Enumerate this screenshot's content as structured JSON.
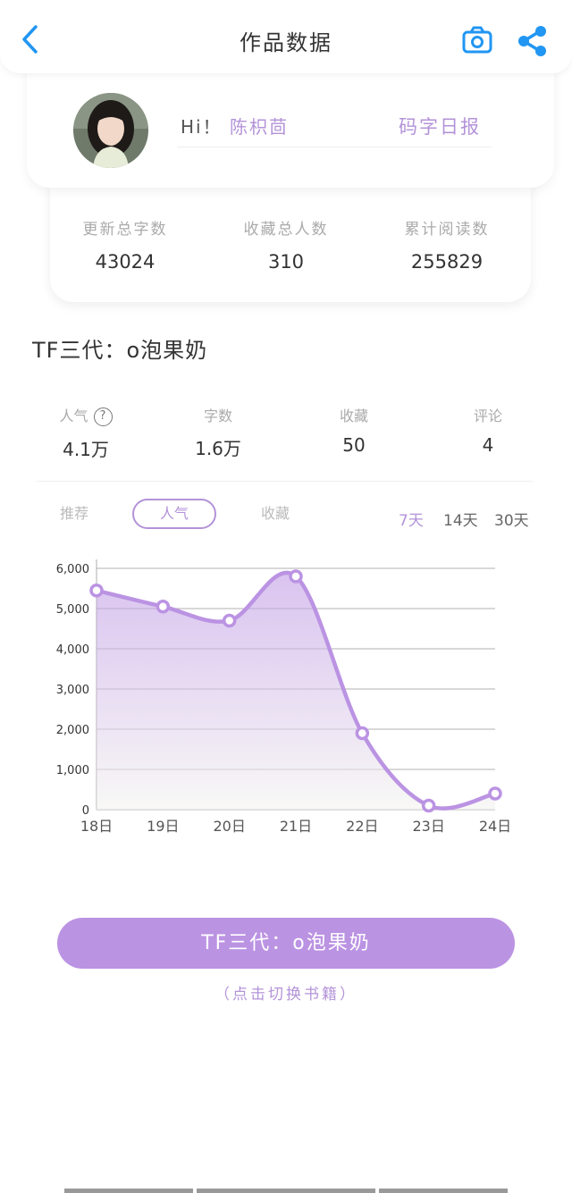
{
  "header": {
    "title": "作品数据"
  },
  "user": {
    "greeting": "Hi！",
    "name": "陈枳茴",
    "daily_link": "码字日报"
  },
  "stats": [
    {
      "label": "更新总字数",
      "value": "43024"
    },
    {
      "label": "收藏总人数",
      "value": "310"
    },
    {
      "label": "累计阅读数",
      "value": "255829"
    }
  ],
  "work": {
    "title": "TF三代：o泡果奶"
  },
  "metrics": [
    {
      "label": "人气",
      "value": "4.1万",
      "help": "?"
    },
    {
      "label": "字数",
      "value": "1.6万"
    },
    {
      "label": "收藏",
      "value": "50"
    },
    {
      "label": "评论",
      "value": "4"
    }
  ],
  "chart_tabs": [
    "推荐",
    "人气",
    "收藏"
  ],
  "active_tab": "人气",
  "ranges": [
    "7天",
    "14天",
    "30天"
  ],
  "active_range": "7天",
  "colors": {
    "accent": "#bb93e3",
    "blue": "#2196f3",
    "grid": "#999999"
  },
  "chart_data": {
    "type": "area",
    "categories": [
      "18日",
      "19日",
      "20日",
      "21日",
      "22日",
      "23日",
      "24日"
    ],
    "values": [
      5450,
      5050,
      4700,
      5800,
      1900,
      100,
      400
    ],
    "yticks": [
      "0",
      "1,000",
      "2,000",
      "3,000",
      "4,000",
      "5,000",
      "6,000"
    ],
    "ylim": [
      0,
      6000
    ],
    "title": "",
    "xlabel": "",
    "ylabel": ""
  },
  "switch_button": {
    "label": "TF三代：o泡果奶",
    "hint": "（点击切换书籍）"
  }
}
